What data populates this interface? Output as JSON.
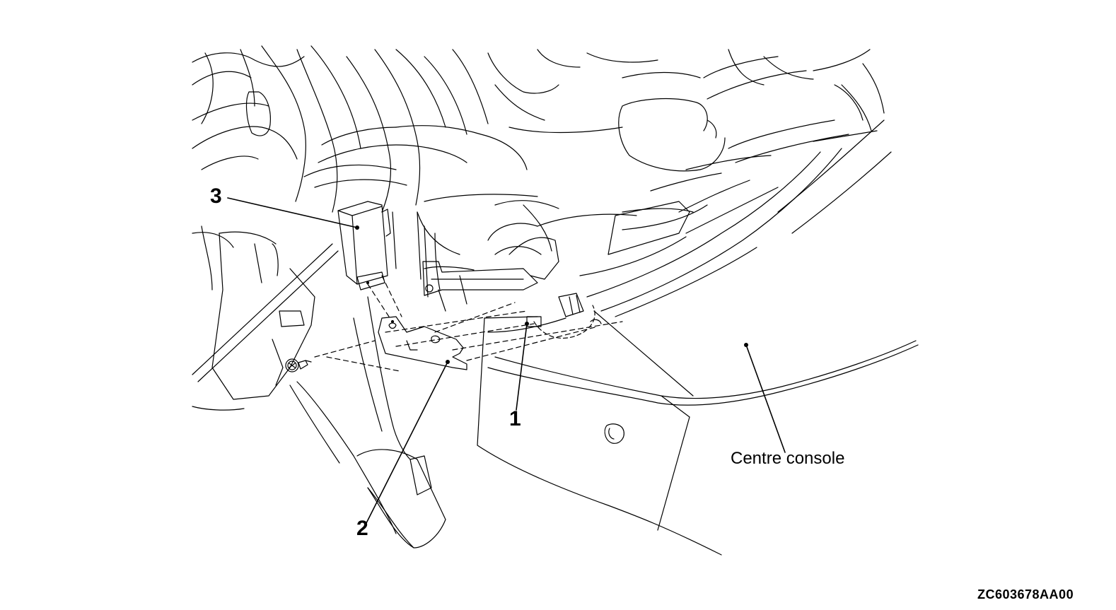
{
  "callouts": {
    "c1": "1",
    "c2": "2",
    "c3": "3"
  },
  "labels": {
    "centre_console": "Centre console"
  },
  "figure_code": "ZC603678AA00"
}
